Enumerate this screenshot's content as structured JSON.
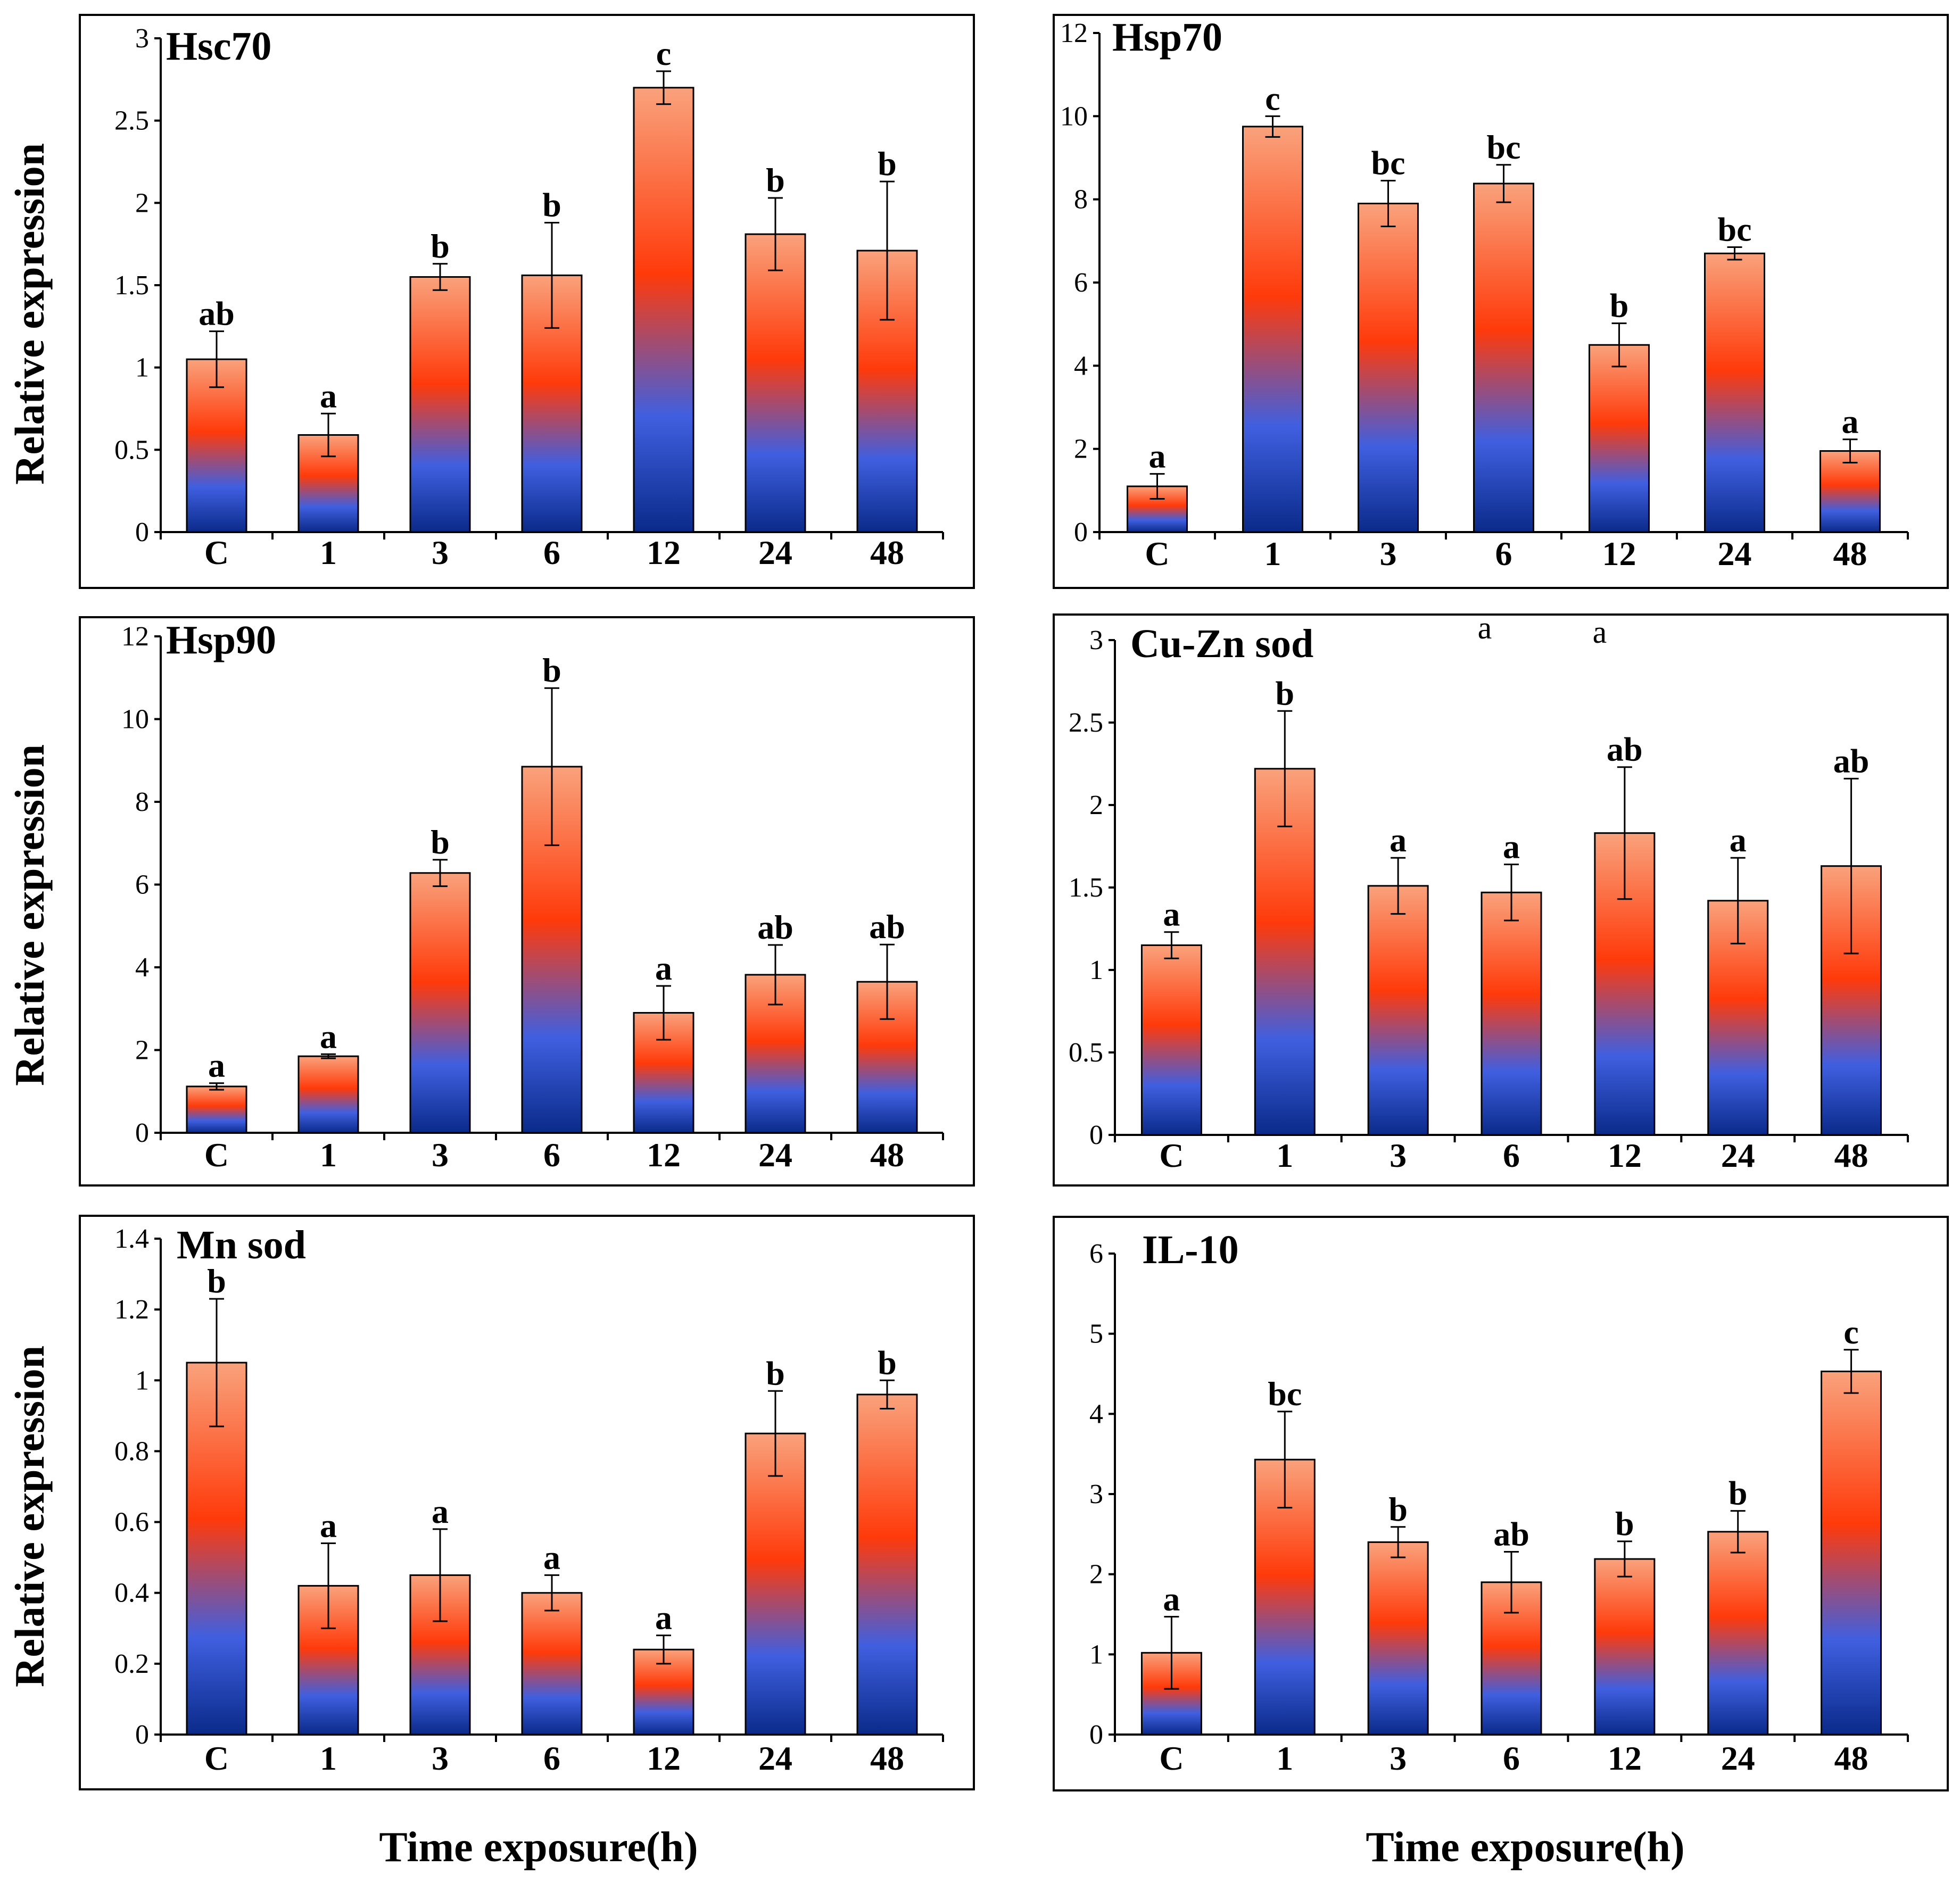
{
  "colors": {
    "bar_top": "#f9a27c",
    "bar_mid": "#ff3a0a",
    "bar_low": "#3f5fe0",
    "bar_bottom": "#0a2a8a"
  },
  "shared": {
    "ylabel": "Relative expression",
    "xlabel": "Time exposure(h)",
    "stray_labels": [
      "a",
      "a"
    ]
  },
  "chart_data": [
    {
      "type": "bar",
      "title": "Hsc70",
      "categories": [
        "C",
        "1",
        "3",
        "6",
        "12",
        "24",
        "48"
      ],
      "values": [
        1.05,
        0.59,
        1.55,
        1.56,
        2.7,
        1.81,
        1.71
      ],
      "errors": [
        0.17,
        0.13,
        0.08,
        0.32,
        0.1,
        0.22,
        0.42
      ],
      "significance": [
        "ab",
        "a",
        "b",
        "b",
        "c",
        "b",
        "b"
      ],
      "ylim": [
        0,
        3
      ],
      "yticks": [
        "0",
        "0.5",
        "1",
        "1.5",
        "2",
        "2.5",
        "3"
      ],
      "ylabel": "Relative expression",
      "xlabel": "Time exposure(h)"
    },
    {
      "type": "bar",
      "title": "Hsp70",
      "categories": [
        "C",
        "1",
        "3",
        "6",
        "12",
        "24",
        "48"
      ],
      "values": [
        1.1,
        9.75,
        7.9,
        8.38,
        4.5,
        6.7,
        1.95
      ],
      "errors": [
        0.3,
        0.25,
        0.55,
        0.45,
        0.52,
        0.15,
        0.28
      ],
      "significance": [
        "a",
        "c",
        "bc",
        "bc",
        "b",
        "bc",
        "a"
      ],
      "ylim": [
        0,
        12
      ],
      "yticks": [
        "0",
        "2",
        "4",
        "6",
        "8",
        "10",
        "12"
      ],
      "ylabel": "",
      "xlabel": ""
    },
    {
      "type": "bar",
      "title": "Hsp90",
      "categories": [
        "C",
        "1",
        "3",
        "6",
        "12",
        "24",
        "48"
      ],
      "values": [
        1.12,
        1.85,
        6.28,
        8.85,
        2.9,
        3.82,
        3.65
      ],
      "errors": [
        0.08,
        0.05,
        0.32,
        1.9,
        0.65,
        0.72,
        0.9
      ],
      "significance": [
        "a",
        "a",
        "b",
        "b",
        "a",
        "ab",
        "ab"
      ],
      "ylim": [
        0,
        12
      ],
      "yticks": [
        "0",
        "2",
        "4",
        "6",
        "8",
        "10",
        "12"
      ],
      "ylabel": "Relative expression",
      "xlabel": ""
    },
    {
      "type": "bar",
      "title": "Cu-Zn sod",
      "categories": [
        "C",
        "1",
        "3",
        "6",
        "12",
        "24",
        "48"
      ],
      "values": [
        1.15,
        2.22,
        1.51,
        1.47,
        1.83,
        1.42,
        1.63
      ],
      "errors": [
        0.08,
        0.35,
        0.17,
        0.17,
        0.4,
        0.26,
        0.53
      ],
      "significance": [
        "a",
        "b",
        "a",
        "a",
        "ab",
        "a",
        "ab"
      ],
      "ylim": [
        0,
        3
      ],
      "yticks": [
        "0",
        "0.5",
        "1",
        "1.5",
        "2",
        "2.5",
        "3"
      ],
      "ylabel": "",
      "xlabel": ""
    },
    {
      "type": "bar",
      "title": "Mn sod",
      "categories": [
        "C",
        "1",
        "3",
        "6",
        "12",
        "24",
        "48"
      ],
      "values": [
        1.05,
        0.42,
        0.45,
        0.4,
        0.24,
        0.85,
        0.96
      ],
      "errors": [
        0.18,
        0.12,
        0.13,
        0.05,
        0.04,
        0.12,
        0.04
      ],
      "significance": [
        "b",
        "a",
        "a",
        "a",
        "a",
        "b",
        "b"
      ],
      "ylim": [
        0,
        1.4
      ],
      "yticks": [
        "0",
        "0.2",
        "0.4",
        "0.6",
        "0.8",
        "1",
        "1.2",
        "1.4"
      ],
      "ylabel": "Relative expression",
      "xlabel": ""
    },
    {
      "type": "bar",
      "title": "IL-10",
      "categories": [
        "C",
        "1",
        "3",
        "6",
        "12",
        "24",
        "48"
      ],
      "values": [
        1.02,
        3.43,
        2.4,
        1.9,
        2.19,
        2.53,
        4.53
      ],
      "errors": [
        0.45,
        0.6,
        0.19,
        0.38,
        0.22,
        0.26,
        0.27
      ],
      "significance": [
        "a",
        "bc",
        "b",
        "ab",
        "b",
        "b",
        "c"
      ],
      "ylim": [
        0,
        6
      ],
      "yticks": [
        "0",
        "1",
        "2",
        "3",
        "4",
        "5",
        "6"
      ],
      "ylabel": "",
      "xlabel": ""
    }
  ]
}
